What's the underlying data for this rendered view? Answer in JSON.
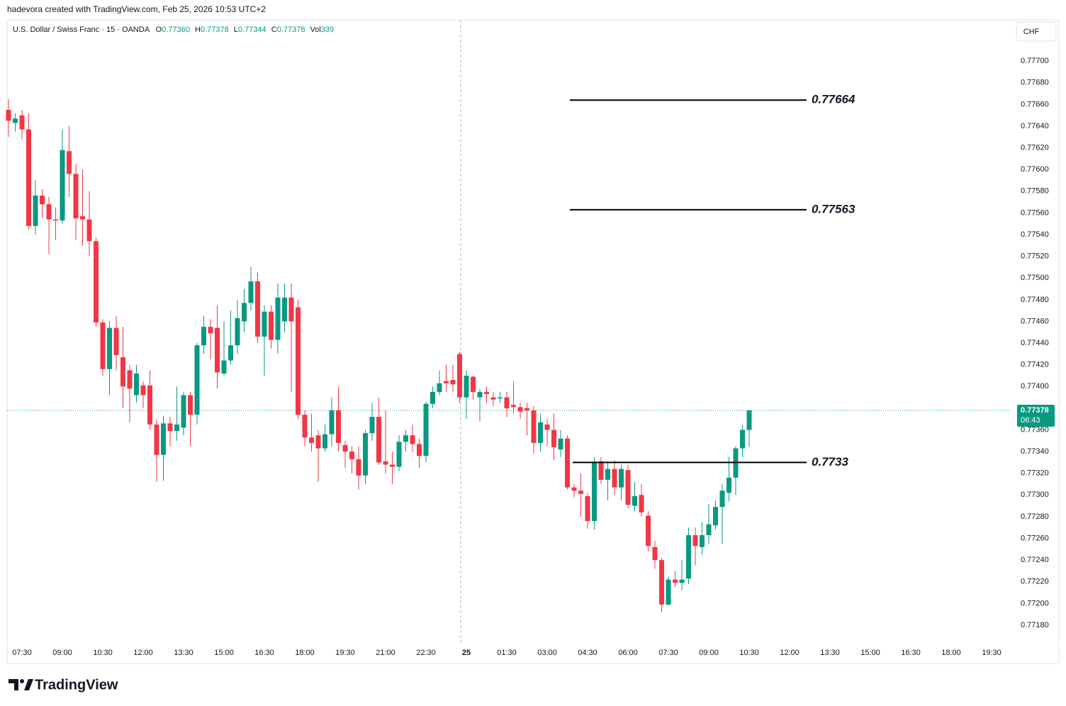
{
  "header": {
    "credit": "hadevora created with TradingView.com, Feb 25, 2026 10:53 UTC+2",
    "symbol": "U.S. Dollar / Swiss Franc · 15 · OANDA",
    "ohlc": [
      {
        "key": "O",
        "value": "0.77360"
      },
      {
        "key": "H",
        "value": "0.77378"
      },
      {
        "key": "L",
        "value": "0.77344"
      },
      {
        "key": "C",
        "value": "0.77378"
      }
    ],
    "volume_key": "Vol",
    "volume": "339",
    "currency": "CHF",
    "brand": "TradingView"
  },
  "chart_data": {
    "type": "candlestick",
    "up_color": "#089981",
    "down_color": "#f23645",
    "open": [
      0.77655,
      0.77643,
      0.7765,
      0.77637,
      0.77548,
      0.77576,
      0.77568,
      0.77554,
      0.77553,
      0.77617,
      0.77596,
      0.77557,
      0.77554,
      0.77534,
      0.77459,
      0.77416,
      0.77454,
      0.77427,
      0.77415,
      0.77392,
      0.77401,
      0.77401,
      0.77365,
      0.77337,
      0.77366,
      0.77359,
      0.77362,
      0.77392,
      0.77374,
      0.77438,
      0.77455,
      0.77454,
      0.77412,
      0.77424,
      0.77438,
      0.7746,
      0.77477,
      0.77497,
      0.77446,
      0.77469,
      0.77443,
      0.7746,
      0.77482,
      0.77473,
      0.77374,
      0.77353,
      0.77355,
      0.77343,
      0.77356,
      0.77378,
      0.77346,
      0.7734,
      0.77333,
      0.77318,
      0.77357,
      0.77372,
      0.77331,
      0.77328,
      0.77326,
      0.77349,
      0.77355,
      0.77347,
      0.77336,
      0.77384,
      0.77395,
      0.77405,
      0.77406,
      0.7743,
      0.7739,
      0.77409,
      0.7739,
      0.77395,
      0.7739,
      0.77389,
      0.7739,
      0.77383,
      0.77381,
      0.7738,
      0.77378,
      0.77348,
      0.77365,
      0.7736,
      0.77342,
      0.77352,
      0.77307,
      0.77304,
      0.77299,
      0.77276,
      0.77331,
      0.77314,
      0.77324,
      0.77307,
      0.77323,
      0.7729,
      0.773,
      0.77281,
      0.77252,
      0.7724,
      0.77199,
      0.77222,
      0.77219,
      0.77223,
      0.77263,
      0.77252,
      0.77263,
      0.77272,
      0.77289,
      0.77302,
      0.77316,
      0.77343,
      0.7736
    ],
    "high": [
      0.77665,
      0.77652,
      0.77655,
      0.77652,
      0.7759,
      0.77582,
      0.77575,
      0.77565,
      0.77637,
      0.7764,
      0.77605,
      0.776,
      0.7758,
      0.77537,
      0.77462,
      0.7746,
      0.77465,
      0.77455,
      0.7742,
      0.7742,
      0.77405,
      0.77415,
      0.7737,
      0.77373,
      0.77372,
      0.774,
      0.77395,
      0.77395,
      0.7744,
      0.77465,
      0.77462,
      0.77475,
      0.7746,
      0.7747,
      0.7748,
      0.7749,
      0.7751,
      0.77505,
      0.77475,
      0.77475,
      0.77495,
      0.77495,
      0.77495,
      0.7748,
      0.77378,
      0.77375,
      0.7736,
      0.77365,
      0.7739,
      0.774,
      0.7735,
      0.77345,
      0.77345,
      0.7736,
      0.77385,
      0.7739,
      0.77378,
      0.7734,
      0.77355,
      0.7736,
      0.77365,
      0.77352,
      0.77386,
      0.774,
      0.77415,
      0.7742,
      0.7742,
      0.77432,
      0.77415,
      0.7741,
      0.77398,
      0.774,
      0.77395,
      0.77395,
      0.77395,
      0.77405,
      0.77385,
      0.77385,
      0.77382,
      0.77375,
      0.7737,
      0.77375,
      0.7736,
      0.77355,
      0.7731,
      0.7732,
      0.77302,
      0.77335,
      0.77335,
      0.7733,
      0.77332,
      0.77328,
      0.77328,
      0.77312,
      0.7731,
      0.77285,
      0.77258,
      0.77242,
      0.77225,
      0.7723,
      0.7724,
      0.7727,
      0.7727,
      0.77275,
      0.77292,
      0.77295,
      0.7731,
      0.77335,
      0.77345,
      0.77365,
      0.77378
    ],
    "low": [
      0.7763,
      0.77635,
      0.77628,
      0.77545,
      0.7754,
      0.77555,
      0.77522,
      0.77535,
      0.7755,
      0.77575,
      0.77535,
      0.7753,
      0.7752,
      0.77455,
      0.7741,
      0.77392,
      0.77415,
      0.7738,
      0.77367,
      0.77385,
      0.7738,
      0.7736,
      0.77312,
      0.77313,
      0.77345,
      0.7735,
      0.77355,
      0.77345,
      0.77365,
      0.7743,
      0.77425,
      0.77398,
      0.7741,
      0.7742,
      0.7743,
      0.7745,
      0.7747,
      0.7744,
      0.7741,
      0.77435,
      0.7743,
      0.7745,
      0.77395,
      0.7737,
      0.77345,
      0.7734,
      0.77312,
      0.7734,
      0.77345,
      0.7734,
      0.77325,
      0.7732,
      0.77305,
      0.7731,
      0.7735,
      0.77328,
      0.7732,
      0.7731,
      0.77322,
      0.7734,
      0.7734,
      0.77325,
      0.7733,
      0.7738,
      0.77392,
      0.77395,
      0.77395,
      0.77385,
      0.7737,
      0.77388,
      0.77368,
      0.77385,
      0.77382,
      0.77385,
      0.77372,
      0.77375,
      0.7737,
      0.77355,
      0.77338,
      0.7734,
      0.77345,
      0.77332,
      0.77335,
      0.77305,
      0.77298,
      0.7728,
      0.77269,
      0.77268,
      0.7731,
      0.77295,
      0.773,
      0.77295,
      0.77288,
      0.77285,
      0.7728,
      0.77248,
      0.77232,
      0.77192,
      0.77198,
      0.77215,
      0.77212,
      0.77218,
      0.77235,
      0.77245,
      0.77255,
      0.77268,
      0.77255,
      0.77294,
      0.773,
      0.77335,
      0.77344
    ],
    "close": [
      0.77645,
      0.77647,
      0.77637,
      0.77548,
      0.77576,
      0.77568,
      0.77554,
      0.77553,
      0.77618,
      0.77596,
      0.77555,
      0.77554,
      0.77534,
      0.77459,
      0.77416,
      0.77454,
      0.77429,
      0.774,
      0.77398,
      0.77412,
      0.77392,
      0.77365,
      0.77337,
      0.77366,
      0.77359,
      0.77365,
      0.77392,
      0.77374,
      0.77438,
      0.77455,
      0.77449,
      0.77413,
      0.77424,
      0.77438,
      0.77463,
      0.77477,
      0.77497,
      0.77446,
      0.77469,
      0.77443,
      0.77482,
      0.77482,
      0.7746,
      0.77374,
      0.77353,
      0.77348,
      0.77343,
      0.77356,
      0.77378,
      0.77348,
      0.7734,
      0.77333,
      0.77318,
      0.77357,
      0.77372,
      0.7733,
      0.77328,
      0.77326,
      0.77349,
      0.77355,
      0.77347,
      0.77336,
      0.77384,
      0.77395,
      0.77403,
      0.77403,
      0.77402,
      0.7739,
      0.7741,
      0.77395,
      0.77395,
      0.77393,
      0.77388,
      0.7739,
      0.7738,
      0.77381,
      0.77377,
      0.77378,
      0.77348,
      0.77367,
      0.7736,
      0.77344,
      0.77352,
      0.77307,
      0.77304,
      0.77301,
      0.77276,
      0.7733,
      0.77314,
      0.77324,
      0.77307,
      0.77324,
      0.77291,
      0.77299,
      0.77284,
      0.77253,
      0.7724,
      0.77199,
      0.77222,
      0.77219,
      0.77222,
      0.77263,
      0.77253,
      0.77263,
      0.77273,
      0.77289,
      0.77304,
      0.77316,
      0.77343,
      0.7736,
      0.77378
    ],
    "xticks": [
      "07:30",
      "09:00",
      "10:30",
      "12:00",
      "13:30",
      "15:00",
      "16:30",
      "18:00",
      "19:30",
      "21:00",
      "22:30",
      "25",
      "01:30",
      "03:00",
      "04:30",
      "06:00",
      "07:30",
      "09:00",
      "10:30",
      "12:00",
      "13:30",
      "15:00",
      "16:30",
      "18:00",
      "19:30"
    ],
    "ylim": [
      0.77163,
      0.77738
    ],
    "yticks": [
      {
        "value": 0.7718,
        "label": "0.77180"
      },
      {
        "value": 0.772,
        "label": "0.77200"
      },
      {
        "value": 0.7722,
        "label": "0.77220"
      },
      {
        "value": 0.7724,
        "label": "0.77240"
      },
      {
        "value": 0.7726,
        "label": "0.77260"
      },
      {
        "value": 0.7728,
        "label": "0.77280"
      },
      {
        "value": 0.773,
        "label": "0.77300"
      },
      {
        "value": 0.7732,
        "label": "0.77320"
      },
      {
        "value": 0.7734,
        "label": "0.77340"
      },
      {
        "value": 0.7736,
        "label": "0.77360"
      },
      {
        "value": 0.7738,
        "label": "0.77380"
      },
      {
        "value": 0.774,
        "label": "0.77400"
      },
      {
        "value": 0.7742,
        "label": "0.77420"
      },
      {
        "value": 0.7744,
        "label": "0.77440"
      },
      {
        "value": 0.7746,
        "label": "0.77460"
      },
      {
        "value": 0.7748,
        "label": "0.77480"
      },
      {
        "value": 0.775,
        "label": "0.77500"
      },
      {
        "value": 0.7752,
        "label": "0.77520"
      },
      {
        "value": 0.7754,
        "label": "0.77540"
      },
      {
        "value": 0.7756,
        "label": "0.77560"
      },
      {
        "value": 0.7758,
        "label": "0.77580"
      },
      {
        "value": 0.776,
        "label": "0.77600"
      },
      {
        "value": 0.7762,
        "label": "0.77620"
      },
      {
        "value": 0.7764,
        "label": "0.77640"
      },
      {
        "value": 0.7766,
        "label": "0.77660"
      },
      {
        "value": 0.7768,
        "label": "0.77680"
      },
      {
        "value": 0.777,
        "label": "0.77700"
      }
    ],
    "levels": [
      0.77664,
      0.77563,
      0.7733
    ],
    "level_color": "#000000",
    "last_price": 0.77378,
    "countdown": "06:43",
    "grid": false
  }
}
